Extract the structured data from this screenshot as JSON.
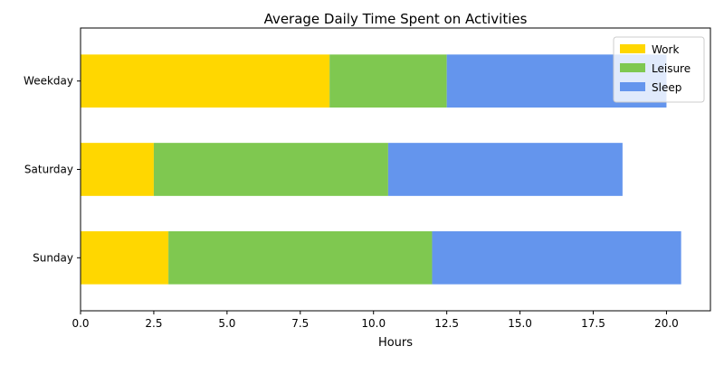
{
  "chart_data": {
    "type": "bar",
    "orientation": "horizontal",
    "stacked": true,
    "title": "Average Daily Time Spent on Activities",
    "xlabel": "Hours",
    "ylabel": "",
    "categories": [
      "Weekday",
      "Saturday",
      "Sunday"
    ],
    "series": [
      {
        "name": "Work",
        "color": "#FFD700",
        "values": [
          8.5,
          2.5,
          3
        ]
      },
      {
        "name": "Leisure",
        "color": "#7FC850",
        "values": [
          4,
          8,
          9
        ]
      },
      {
        "name": "Sleep",
        "color": "#6495ED",
        "values": [
          7.5,
          8,
          8.5
        ]
      }
    ],
    "xlim": [
      0,
      21.5
    ],
    "xticks": [
      "0.0",
      "2.5",
      "5.0",
      "7.5",
      "10.0",
      "12.5",
      "15.0",
      "17.5",
      "20.0"
    ],
    "grid": false,
    "legend": {
      "position": "top-right",
      "entries": [
        "Work",
        "Leisure",
        "Sleep"
      ]
    }
  }
}
